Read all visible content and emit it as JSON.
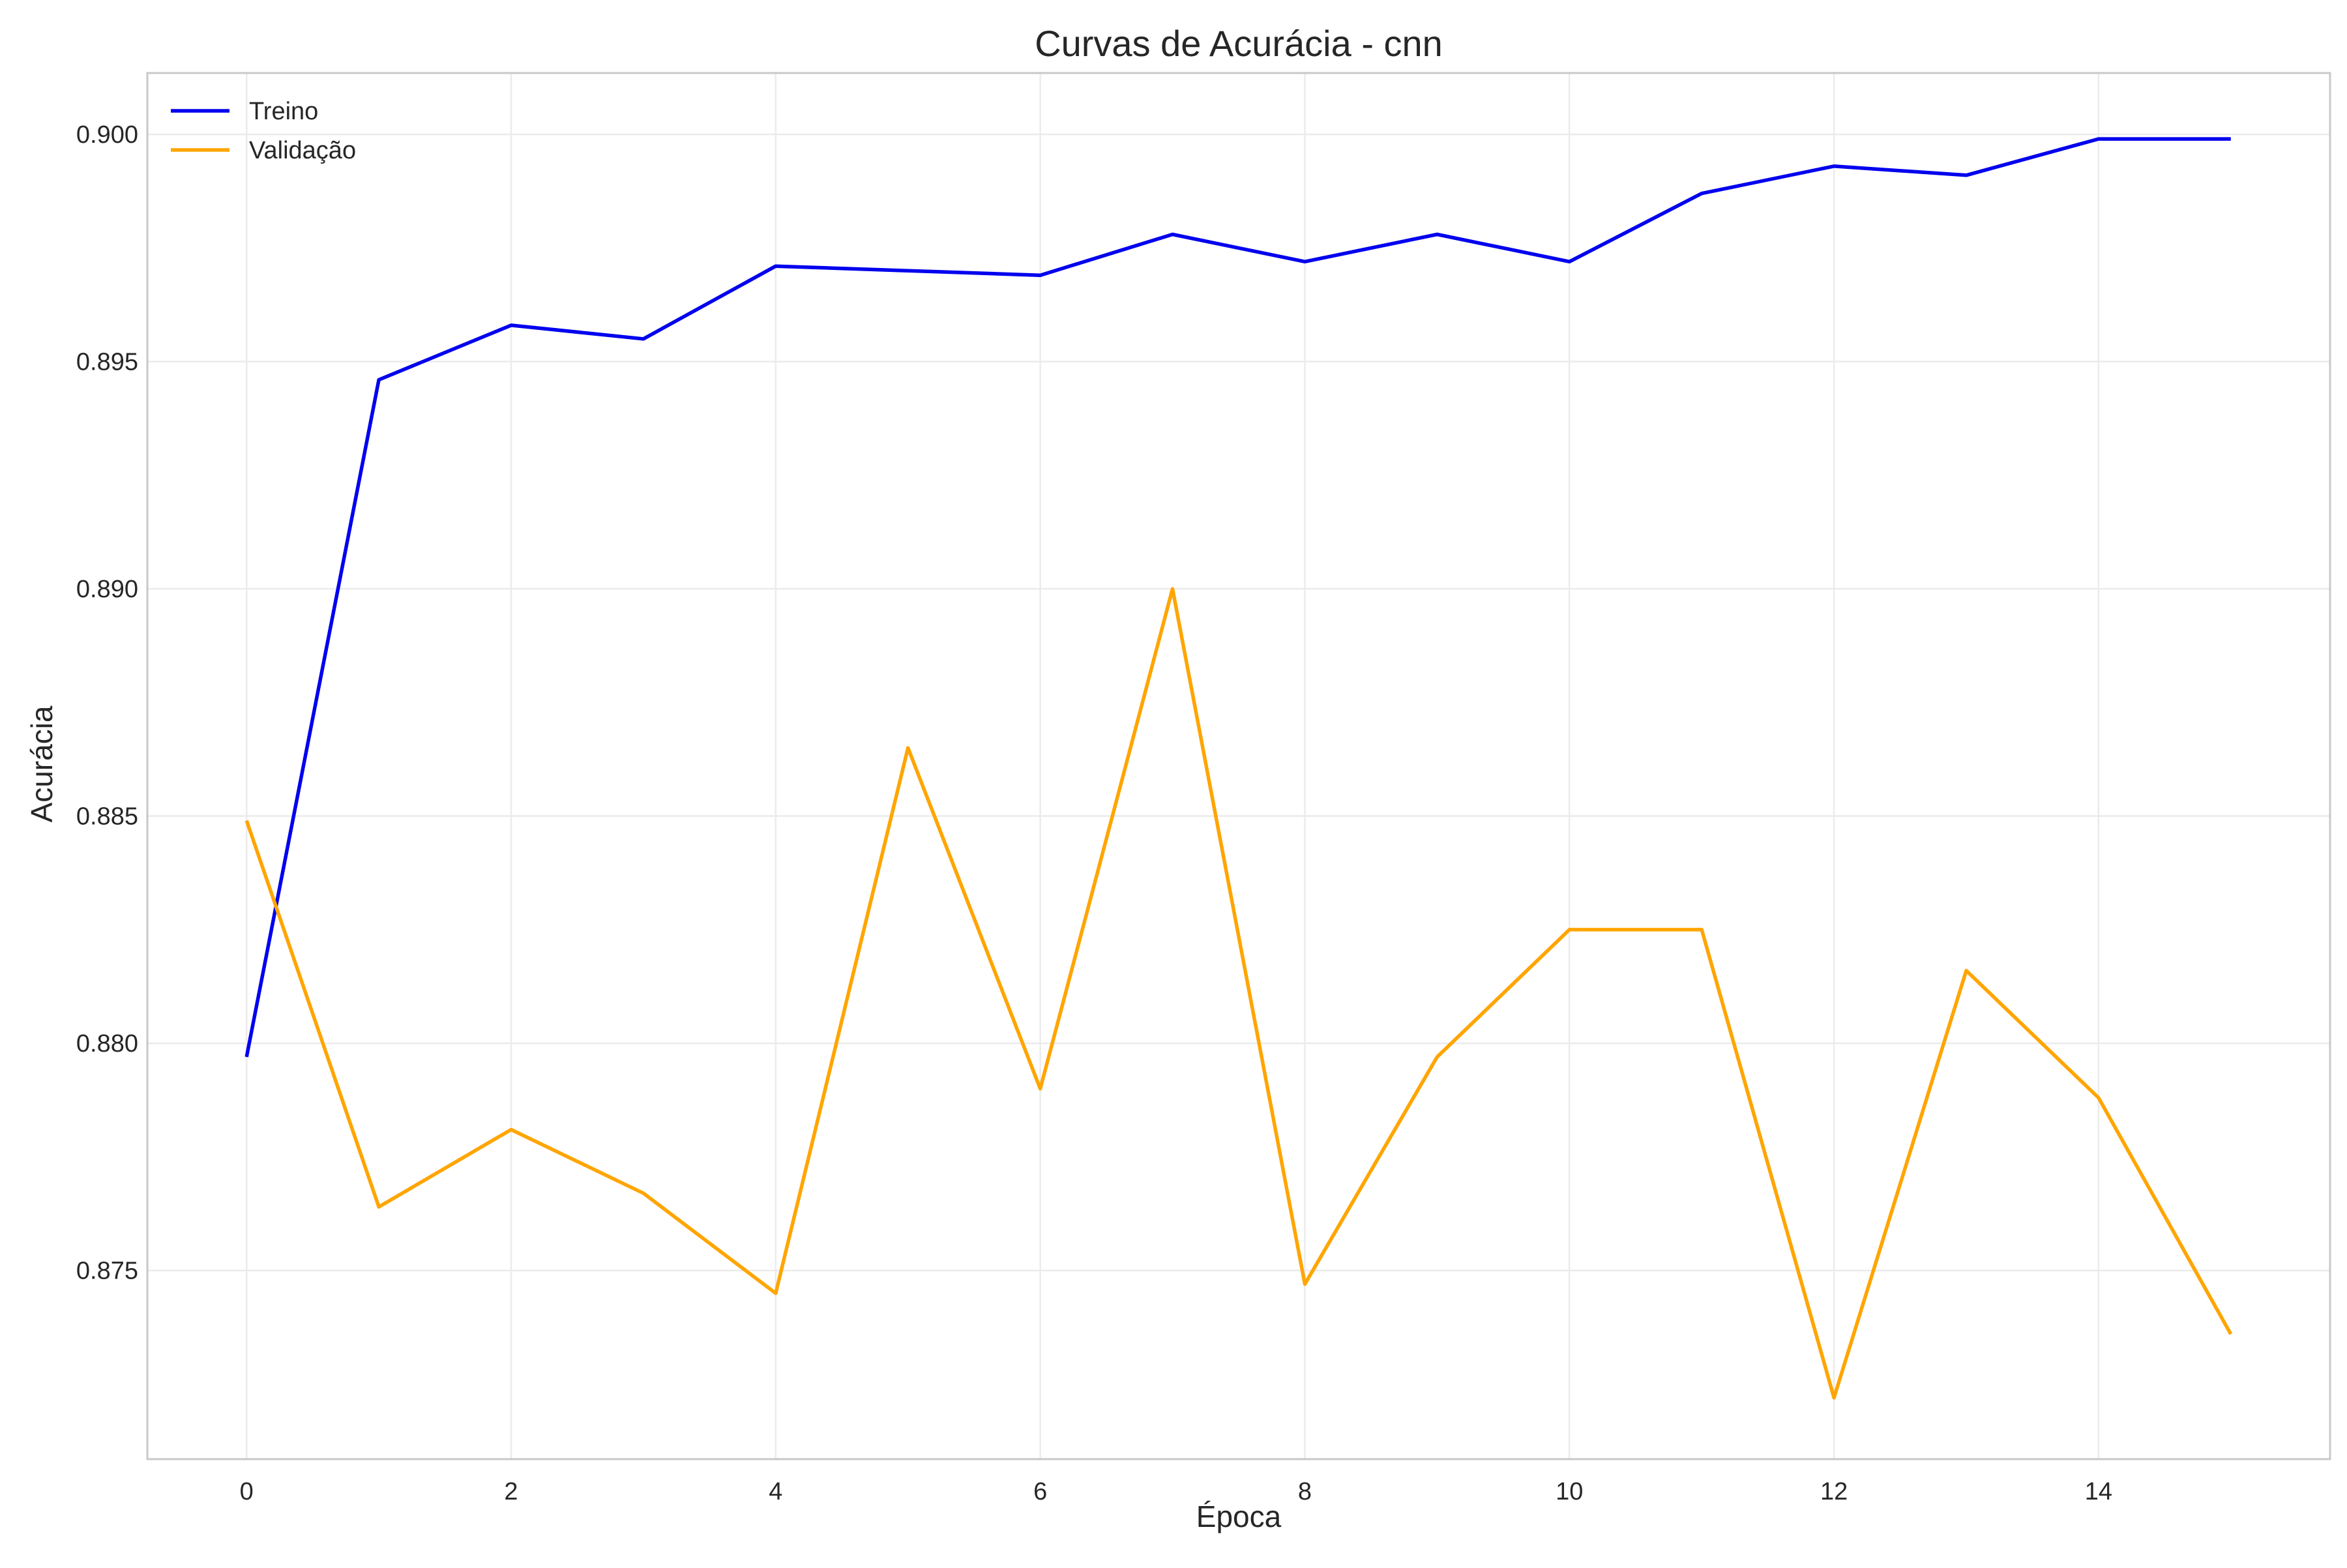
{
  "chart_data": {
    "type": "line",
    "title": "Curvas de Acurácia - cnn",
    "xlabel": "Época",
    "ylabel": "Acurácia",
    "x": [
      0,
      1,
      2,
      3,
      4,
      5,
      6,
      7,
      8,
      9,
      10,
      11,
      12,
      13,
      14,
      15
    ],
    "xlim": [
      -0.75,
      15.75
    ],
    "ylim": [
      0.87085,
      0.90135
    ],
    "x_ticks": [
      0,
      2,
      4,
      6,
      8,
      10,
      12,
      14
    ],
    "x_tick_labels": [
      "0",
      "2",
      "4",
      "6",
      "8",
      "10",
      "12",
      "14"
    ],
    "y_ticks": [
      0.875,
      0.88,
      0.885,
      0.89,
      0.895,
      0.9
    ],
    "y_tick_labels": [
      "0.875",
      "0.880",
      "0.885",
      "0.890",
      "0.895",
      "0.900"
    ],
    "grid": true,
    "legend_position": "top-left",
    "series": [
      {
        "name": "Treino",
        "color": "#0000ee",
        "values": [
          0.8797,
          0.8946,
          0.8958,
          0.8955,
          0.8971,
          0.897,
          0.8969,
          0.8978,
          0.8972,
          0.8978,
          0.8972,
          0.8987,
          0.8993,
          0.8991,
          0.8999,
          0.8999
        ]
      },
      {
        "name": "Validação",
        "color": "#ffa500",
        "values": [
          0.8849,
          0.8764,
          0.8781,
          0.8767,
          0.8745,
          0.8865,
          0.879,
          0.89,
          0.8747,
          0.8797,
          0.8825,
          0.8825,
          0.8722,
          0.8816,
          0.8788,
          0.8736
        ]
      }
    ]
  }
}
